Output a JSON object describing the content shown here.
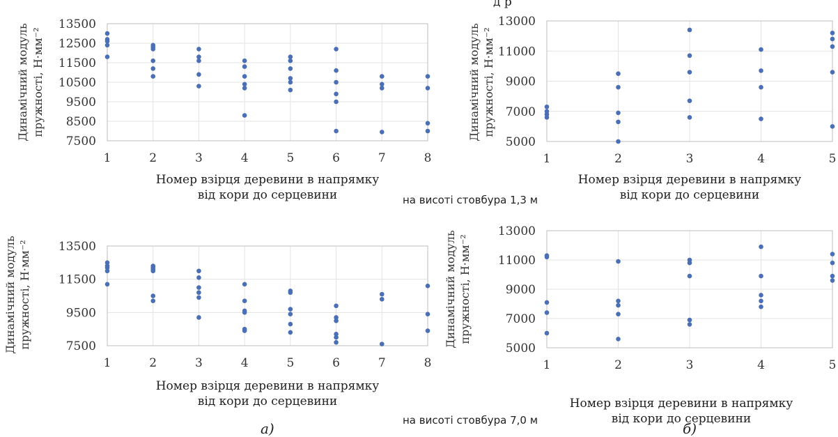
{
  "top_text_fragment": "д     р",
  "captions": [
    "на висоті стовбура 1,3 м",
    "на висоті стовбура 7,0 м"
  ],
  "sublabels": [
    "а)",
    "б)"
  ],
  "marker_color": "#4a6fb5",
  "chart_data": [
    {
      "type": "scatter",
      "title": "",
      "xlabel": "Номер взірця деревини в напрямку від кори до серцевини",
      "xlabel_lines": [
        "Номер взірця деревини в напрямку",
        "від кори до серцевини"
      ],
      "ylabel": "Динамічний модуль пружності, Н·мм-2",
      "ylabel_lines": [
        "Динамічний модуль",
        "пружності, Н·мм⁻²"
      ],
      "xlim": [
        1,
        8
      ],
      "ylim": [
        7500,
        13500
      ],
      "xticks": [
        1,
        2,
        3,
        4,
        5,
        6,
        7,
        8
      ],
      "yticks": [
        7500,
        8500,
        9500,
        10500,
        11500,
        12500,
        13500
      ],
      "grid": true,
      "points": [
        [
          1,
          13000
        ],
        [
          1,
          12700
        ],
        [
          1,
          12600
        ],
        [
          1,
          12400
        ],
        [
          1,
          11800
        ],
        [
          2,
          12400
        ],
        [
          2,
          12300
        ],
        [
          2,
          12200
        ],
        [
          2,
          11600
        ],
        [
          2,
          11200
        ],
        [
          2,
          10800
        ],
        [
          3,
          12200
        ],
        [
          3,
          11800
        ],
        [
          3,
          11600
        ],
        [
          3,
          10900
        ],
        [
          3,
          10300
        ],
        [
          4,
          11600
        ],
        [
          4,
          11300
        ],
        [
          4,
          10800
        ],
        [
          4,
          10400
        ],
        [
          4,
          10200
        ],
        [
          4,
          8800
        ],
        [
          5,
          11800
        ],
        [
          5,
          11600
        ],
        [
          5,
          11200
        ],
        [
          5,
          10700
        ],
        [
          5,
          10500
        ],
        [
          5,
          10100
        ],
        [
          6,
          12200
        ],
        [
          6,
          11100
        ],
        [
          6,
          10500
        ],
        [
          6,
          9900
        ],
        [
          6,
          9500
        ],
        [
          6,
          8000
        ],
        [
          7,
          10800
        ],
        [
          7,
          10400
        ],
        [
          7,
          10200
        ],
        [
          7,
          7950
        ],
        [
          8,
          10800
        ],
        [
          8,
          10200
        ],
        [
          8,
          8400
        ],
        [
          8,
          8000
        ]
      ]
    },
    {
      "type": "scatter",
      "title": "",
      "xlabel": "Номер взірця деревини в напрямку від кори до серцевини",
      "xlabel_lines": [
        "Номер взірця деревини в напрямку",
        "від кори до серцевини"
      ],
      "ylabel": "Динамічний модуль пружності, Н·мм-2",
      "ylabel_lines": [
        "Динамічний модуль",
        "пружності, Н·мм⁻²"
      ],
      "xlim": [
        1,
        5
      ],
      "ylim": [
        5000,
        13000
      ],
      "xticks": [
        1,
        2,
        3,
        4,
        5
      ],
      "yticks": [
        5000,
        7000,
        9000,
        11000,
        13000
      ],
      "grid": true,
      "points": [
        [
          1,
          7300
        ],
        [
          1,
          7000
        ],
        [
          1,
          6800
        ],
        [
          1,
          6600
        ],
        [
          2,
          9500
        ],
        [
          2,
          8600
        ],
        [
          2,
          6900
        ],
        [
          2,
          6300
        ],
        [
          2,
          5000
        ],
        [
          3,
          12400
        ],
        [
          3,
          10700
        ],
        [
          3,
          9600
        ],
        [
          3,
          7700
        ],
        [
          3,
          6600
        ],
        [
          4,
          11100
        ],
        [
          4,
          9700
        ],
        [
          4,
          8600
        ],
        [
          4,
          6500
        ],
        [
          5,
          12200
        ],
        [
          5,
          11800
        ],
        [
          5,
          11300
        ],
        [
          5,
          9600
        ],
        [
          5,
          6000
        ]
      ]
    },
    {
      "type": "scatter",
      "title": "",
      "xlabel": "Номер взірця деревини в напрямку від кори до серцевини",
      "xlabel_lines": [
        "Номер взірця деревини в напрямку",
        "від кори до серцевини"
      ],
      "ylabel": "Динамічний модуль пружності, Н·мм-2",
      "ylabel_lines": [
        "Динамічний модуль",
        "пружності, Н·мм⁻²"
      ],
      "xlim": [
        1,
        8
      ],
      "ylim": [
        7500,
        13500
      ],
      "xticks": [
        1,
        2,
        3,
        4,
        5,
        6,
        7,
        8
      ],
      "yticks": [
        7500,
        9500,
        11500,
        13500
      ],
      "grid": true,
      "points": [
        [
          1,
          12500
        ],
        [
          1,
          12300
        ],
        [
          1,
          12200
        ],
        [
          1,
          12000
        ],
        [
          1,
          11200
        ],
        [
          2,
          12300
        ],
        [
          2,
          12200
        ],
        [
          2,
          12100
        ],
        [
          2,
          12000
        ],
        [
          2,
          10500
        ],
        [
          2,
          10200
        ],
        [
          3,
          12000
        ],
        [
          3,
          11600
        ],
        [
          3,
          11000
        ],
        [
          3,
          10700
        ],
        [
          3,
          10400
        ],
        [
          3,
          9200
        ],
        [
          4,
          11200
        ],
        [
          4,
          10200
        ],
        [
          4,
          9600
        ],
        [
          4,
          9500
        ],
        [
          4,
          8500
        ],
        [
          4,
          8400
        ],
        [
          5,
          10800
        ],
        [
          5,
          10700
        ],
        [
          5,
          9700
        ],
        [
          5,
          9400
        ],
        [
          5,
          8800
        ],
        [
          5,
          8300
        ],
        [
          6,
          9900
        ],
        [
          6,
          9200
        ],
        [
          6,
          9000
        ],
        [
          6,
          8200
        ],
        [
          6,
          8000
        ],
        [
          6,
          7700
        ],
        [
          7,
          10600
        ],
        [
          7,
          10300
        ],
        [
          7,
          7600
        ],
        [
          8,
          11100
        ],
        [
          8,
          9400
        ],
        [
          8,
          8400
        ]
      ]
    },
    {
      "type": "scatter",
      "title": "",
      "xlabel": "Номер взірця деревини в напрямку від кори до серцевини",
      "xlabel_lines": [
        "Номер взірця деревини в напрямку",
        "від кори до серцевини"
      ],
      "ylabel": "Динамічний модуль пружності, Н·мм-2",
      "ylabel_lines": [
        "Динамічний модуль",
        "пружності, Н·мм⁻²"
      ],
      "xlim": [
        1,
        5
      ],
      "ylim": [
        5000,
        13000
      ],
      "xticks": [
        1,
        2,
        3,
        4,
        5
      ],
      "yticks": [
        5000,
        7000,
        9000,
        11000,
        13000
      ],
      "grid": true,
      "points": [
        [
          1,
          11300
        ],
        [
          1,
          11200
        ],
        [
          1,
          8100
        ],
        [
          1,
          7400
        ],
        [
          1,
          6000
        ],
        [
          2,
          10900
        ],
        [
          2,
          8200
        ],
        [
          2,
          7900
        ],
        [
          2,
          7300
        ],
        [
          2,
          5600
        ],
        [
          3,
          11000
        ],
        [
          3,
          10800
        ],
        [
          3,
          9900
        ],
        [
          3,
          6900
        ],
        [
          3,
          6600
        ],
        [
          4,
          11900
        ],
        [
          4,
          9900
        ],
        [
          4,
          8600
        ],
        [
          4,
          8200
        ],
        [
          4,
          7800
        ],
        [
          5,
          11400
        ],
        [
          5,
          10800
        ],
        [
          5,
          9900
        ],
        [
          5,
          9600
        ]
      ]
    }
  ]
}
